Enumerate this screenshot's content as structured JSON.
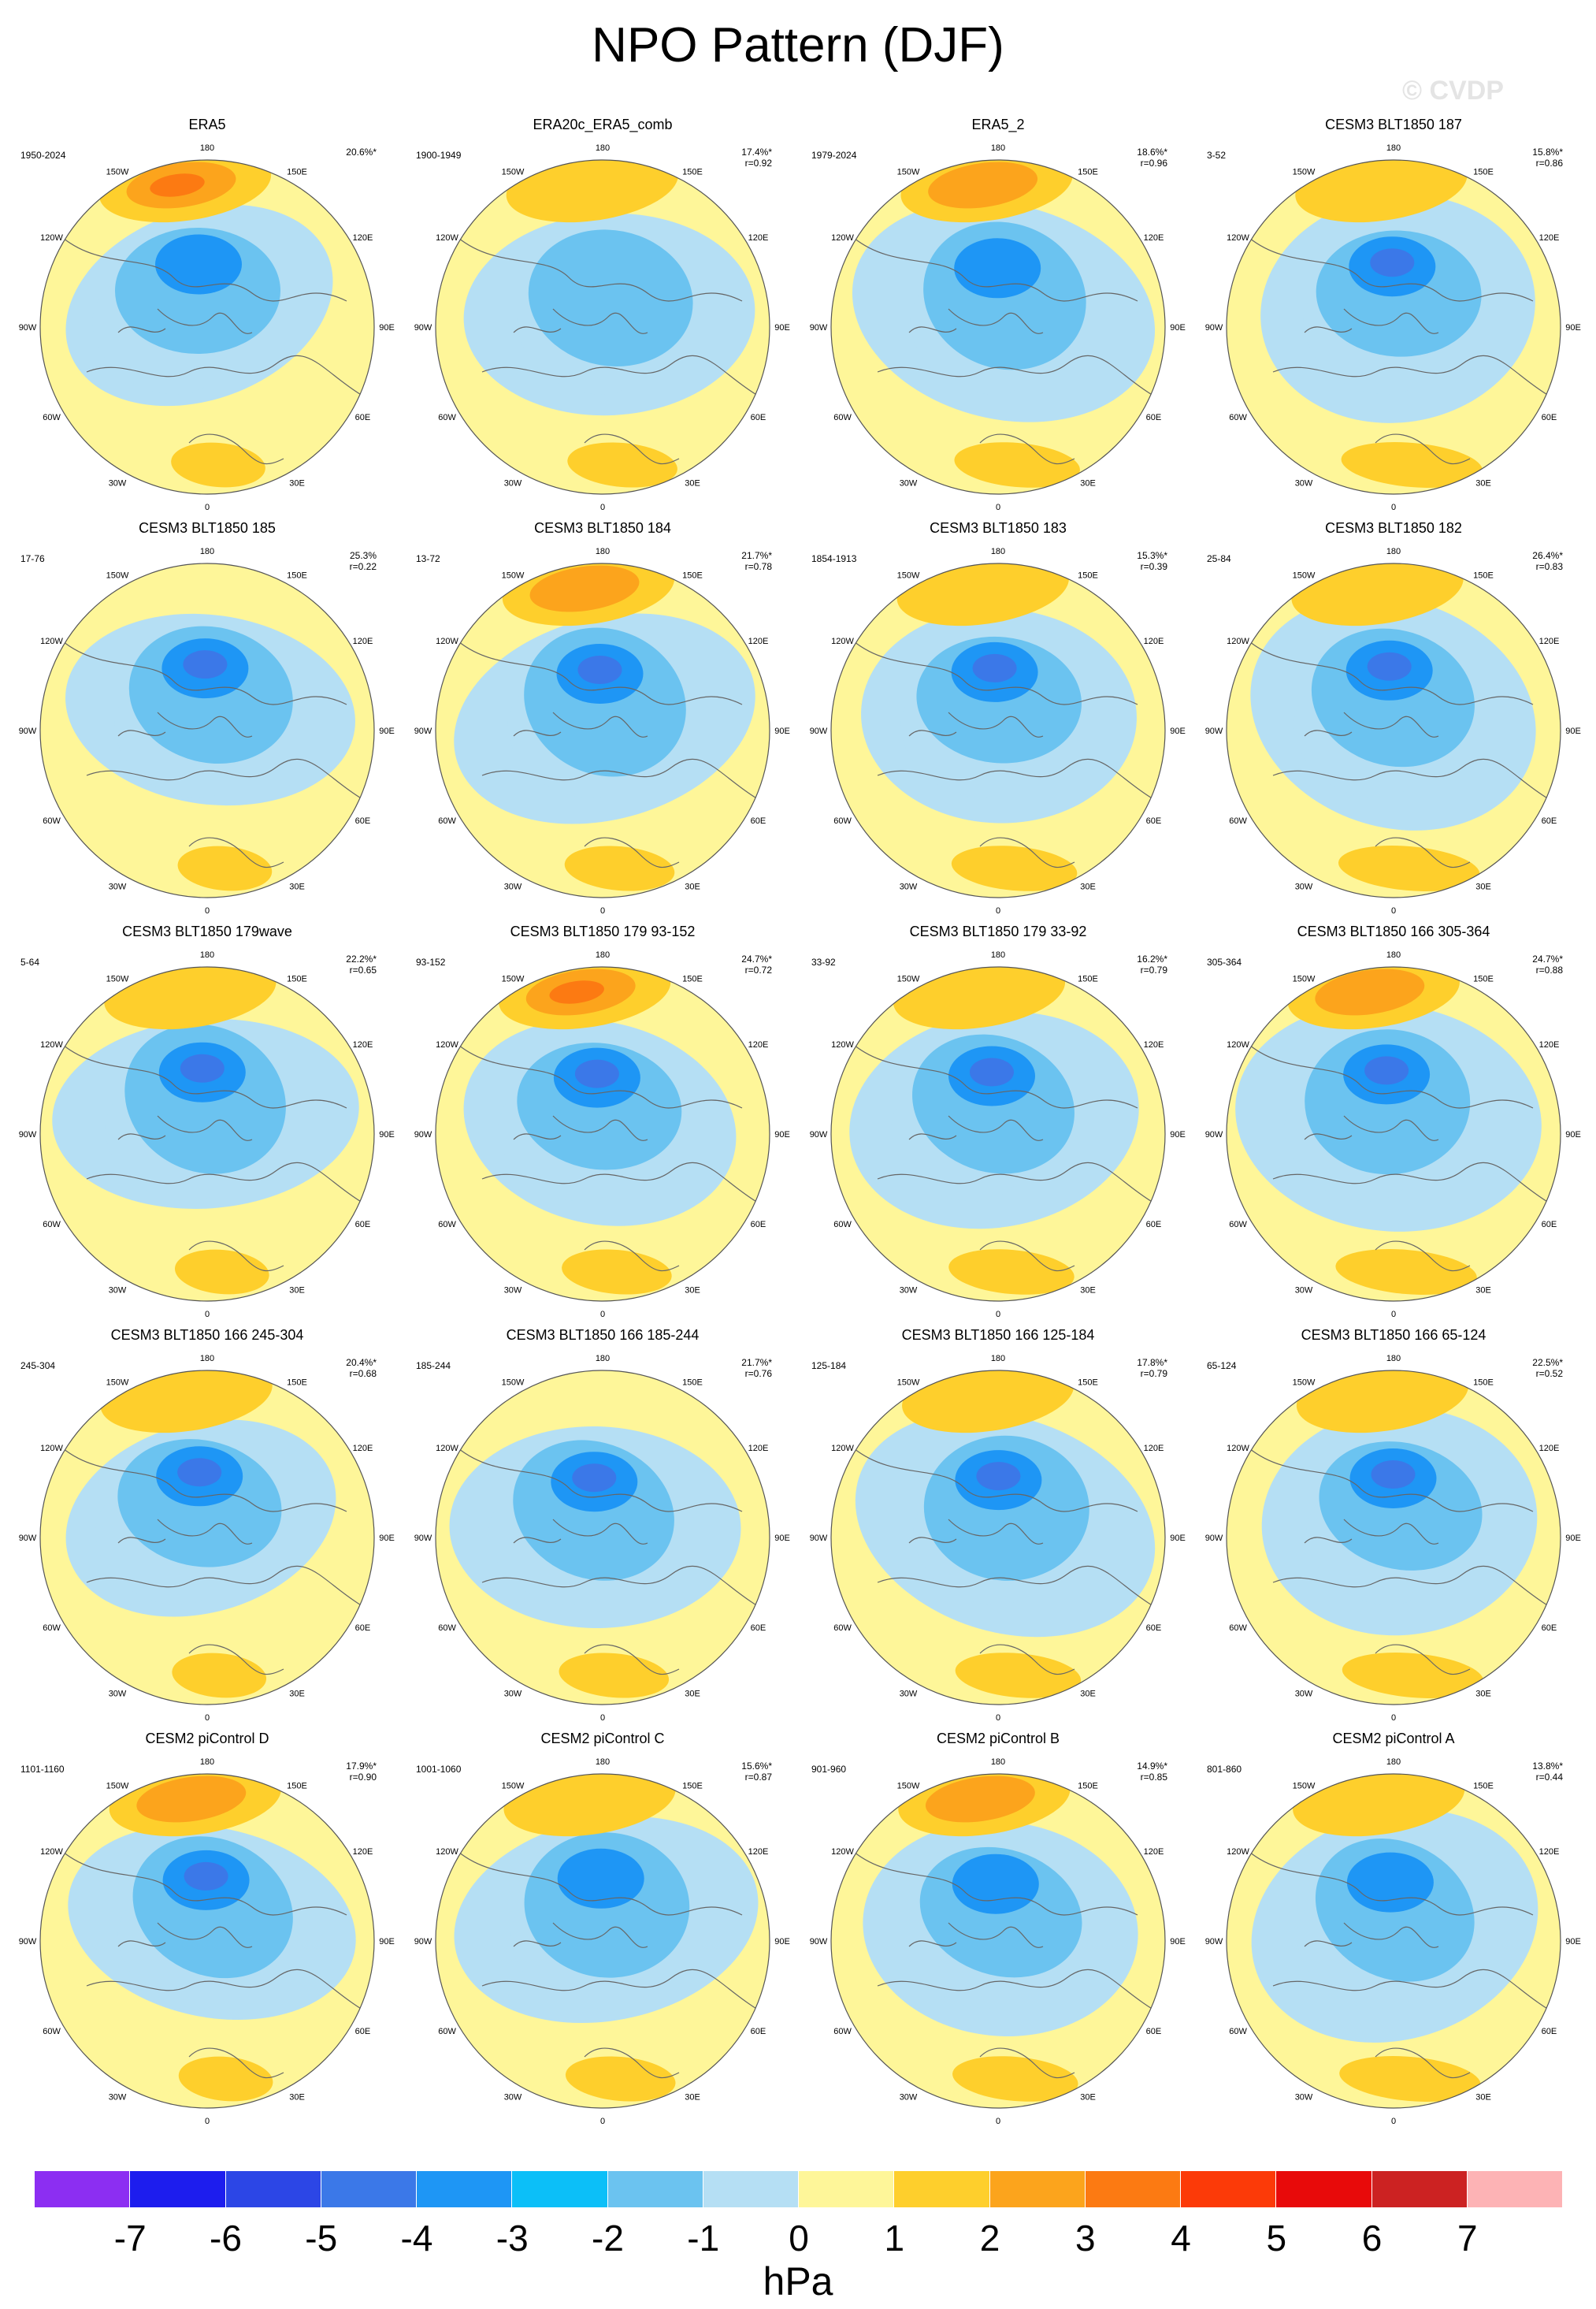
{
  "title": "NPO Pattern (DJF)",
  "watermark": "© CVDP",
  "units": "hPa",
  "lon_labels": [
    "180",
    "150E",
    "120E",
    "90E",
    "60E",
    "30E",
    "0",
    "30W",
    "60W",
    "90W",
    "120W",
    "150W"
  ],
  "colorbar": {
    "colors": [
      "#8c2ef2",
      "#1d1dee",
      "#2c46e6",
      "#3b78e8",
      "#1e96f5",
      "#0cbff8",
      "#6bc3f0",
      "#b5dff4",
      "#fef699",
      "#fecf2c",
      "#fca41c",
      "#fc7a12",
      "#fc3a08",
      "#e80a0a",
      "#cc2222",
      "#fdb3b5"
    ],
    "ticks": [
      "-7",
      "-6",
      "-5",
      "-4",
      "-3",
      "-2",
      "-1",
      "0",
      "1",
      "2",
      "3",
      "4",
      "5",
      "6",
      "7"
    ]
  },
  "colors": {
    "ocean_base": "#fef699",
    "neg1": "#b5dff4",
    "neg2": "#6bc3f0",
    "neg3": "#1e96f5",
    "neg4": "#3b78e8",
    "pos1": "#fecf2c",
    "pos2": "#fca41c",
    "coast": "#666666"
  },
  "panels": [
    {
      "name": "ERA5",
      "years": "1950-2024",
      "pct": "20.6%*",
      "r": "",
      "aleutian": 3,
      "low": 3,
      "pattern": 0
    },
    {
      "name": "ERA20c_ERA5_comb",
      "years": "1900-1949",
      "pct": "17.4%*",
      "r": "r=0.92",
      "aleutian": 1,
      "low": 2,
      "pattern": 1
    },
    {
      "name": "ERA5_2",
      "years": "1979-2024",
      "pct": "18.6%*",
      "r": "r=0.96",
      "aleutian": 2,
      "low": 3,
      "pattern": 2
    },
    {
      "name": "CESM3 BLT1850 187",
      "years": "3-52",
      "pct": "15.8%*",
      "r": "r=0.86",
      "aleutian": 1,
      "low": 4,
      "pattern": 3
    },
    {
      "name": "CESM3 BLT1850 185",
      "years": "17-76",
      "pct": "25.3%",
      "r": "r=0.22",
      "aleutian": 0,
      "low": 4,
      "pattern": 4
    },
    {
      "name": "CESM3 BLT1850 184",
      "years": "13-72",
      "pct": "21.7%*",
      "r": "r=0.78",
      "aleutian": 2,
      "low": 4,
      "pattern": 5
    },
    {
      "name": "CESM3 BLT1850 183",
      "years": "1854-1913",
      "pct": "15.3%*",
      "r": "r=0.39",
      "aleutian": 1,
      "low": 4,
      "pattern": 6
    },
    {
      "name": "CESM3 BLT1850 182",
      "years": "25-84",
      "pct": "26.4%*",
      "r": "r=0.83",
      "aleutian": 1,
      "low": 4,
      "pattern": 7
    },
    {
      "name": "CESM3 BLT1850 179wave",
      "years": "5-64",
      "pct": "22.2%*",
      "r": "r=0.65",
      "aleutian": 1,
      "low": 4,
      "pattern": 8
    },
    {
      "name": "CESM3 BLT1850 179 93-152",
      "years": "93-152",
      "pct": "24.7%*",
      "r": "r=0.72",
      "aleutian": 3,
      "low": 4,
      "pattern": 9
    },
    {
      "name": "CESM3 BLT1850 179 33-92",
      "years": "33-92",
      "pct": "16.2%*",
      "r": "r=0.79",
      "aleutian": 1,
      "low": 4,
      "pattern": 10
    },
    {
      "name": "CESM3 BLT1850 166 305-364",
      "years": "305-364",
      "pct": "24.7%*",
      "r": "r=0.88",
      "aleutian": 2,
      "low": 4,
      "pattern": 11
    },
    {
      "name": "CESM3 BLT1850 166 245-304",
      "years": "245-304",
      "pct": "20.4%*",
      "r": "r=0.68",
      "aleutian": 1,
      "low": 4,
      "pattern": 12
    },
    {
      "name": "CESM3 BLT1850 166 185-244",
      "years": "185-244",
      "pct": "21.7%*",
      "r": "r=0.76",
      "aleutian": 0,
      "low": 4,
      "pattern": 13
    },
    {
      "name": "CESM3 BLT1850 166 125-184",
      "years": "125-184",
      "pct": "17.8%*",
      "r": "r=0.79",
      "aleutian": 1,
      "low": 4,
      "pattern": 14
    },
    {
      "name": "CESM3 BLT1850 166 65-124",
      "years": "65-124",
      "pct": "22.5%*",
      "r": "r=0.52",
      "aleutian": 1,
      "low": 4,
      "pattern": 15
    },
    {
      "name": "CESM2 piControl D",
      "years": "1101-1160",
      "pct": "17.9%*",
      "r": "r=0.90",
      "aleutian": 2,
      "low": 4,
      "pattern": 16
    },
    {
      "name": "CESM2 piControl C",
      "years": "1001-1060",
      "pct": "15.6%*",
      "r": "r=0.87",
      "aleutian": 1,
      "low": 3,
      "pattern": 17
    },
    {
      "name": "CESM2 piControl B",
      "years": "901-960",
      "pct": "14.9%*",
      "r": "r=0.85",
      "aleutian": 2,
      "low": 3,
      "pattern": 18
    },
    {
      "name": "CESM2 piControl A",
      "years": "801-860",
      "pct": "13.8%*",
      "r": "r=0.44",
      "aleutian": 1,
      "low": 3,
      "pattern": 19
    }
  ]
}
